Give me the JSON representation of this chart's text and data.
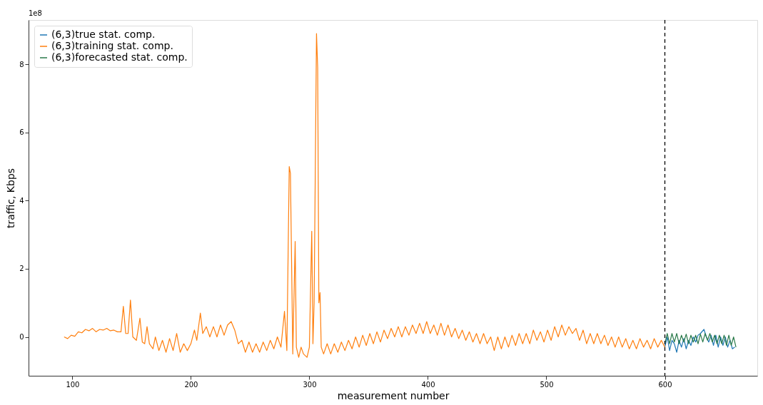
{
  "chart_data": {
    "type": "line",
    "xlabel": "measurement number",
    "ylabel": "traffic, Kbps",
    "annotations": [
      "1e8"
    ],
    "xlim": [
      63,
      678
    ],
    "ylim": [
      -1.14,
      9.3
    ],
    "xticks": [
      100,
      200,
      300,
      400,
      500,
      600
    ],
    "yticks": [
      0,
      2,
      4,
      6,
      8
    ],
    "grid": false,
    "legend": "top left",
    "line_style": "solid",
    "marker": "none",
    "ref_lines": [
      {
        "axis": "x",
        "value": 600,
        "label": null,
        "color": "#000000",
        "line_style": "dashed"
      }
    ],
    "series": [
      {
        "name": "(6,3)true stat. comp.",
        "color": "#1f77b4",
        "x": [
          600,
          602,
          604,
          606,
          608,
          610,
          612,
          614,
          616,
          618,
          620,
          622,
          624,
          626,
          628,
          630,
          633,
          635,
          637,
          639,
          641,
          643,
          645,
          647,
          649,
          651,
          653,
          655,
          657,
          659
        ],
        "values": [
          -0.3,
          0.0,
          -0.4,
          -0.1,
          -0.2,
          -0.45,
          -0.1,
          -0.3,
          -0.05,
          -0.35,
          -0.1,
          -0.25,
          0.0,
          -0.15,
          0.05,
          0.1,
          0.22,
          0.0,
          -0.15,
          0.05,
          -0.25,
          0.05,
          -0.3,
          0.0,
          -0.25,
          0.0,
          -0.3,
          -0.1,
          -0.35,
          -0.3
        ]
      },
      {
        "name": "(6,3)training stat. comp.",
        "color": "#ff7f0e",
        "x": [
          93,
          96,
          99,
          102,
          105,
          108,
          111,
          114,
          117,
          120,
          123,
          126,
          129,
          132,
          135,
          138,
          141,
          143,
          145,
          147,
          149,
          151,
          154,
          157,
          159,
          161,
          163,
          165,
          168,
          170,
          173,
          176,
          179,
          182,
          185,
          188,
          191,
          194,
          197,
          200,
          203,
          205,
          208,
          210,
          213,
          216,
          219,
          222,
          225,
          228,
          231,
          234,
          237,
          240,
          243,
          246,
          249,
          252,
          255,
          258,
          261,
          264,
          267,
          270,
          273,
          276,
          279,
          281,
          283,
          284,
          286,
          288,
          289,
          291,
          293,
          295,
          298,
          300,
          302,
          303,
          304,
          306,
          307,
          308,
          309,
          310,
          312,
          315,
          318,
          321,
          324,
          327,
          330,
          333,
          336,
          339,
          342,
          345,
          348,
          351,
          354,
          357,
          360,
          363,
          366,
          369,
          372,
          375,
          378,
          381,
          384,
          387,
          390,
          393,
          396,
          399,
          402,
          405,
          408,
          411,
          414,
          417,
          420,
          423,
          426,
          429,
          432,
          435,
          438,
          441,
          444,
          447,
          450,
          453,
          456,
          459,
          462,
          465,
          468,
          471,
          474,
          477,
          480,
          483,
          486,
          489,
          492,
          495,
          498,
          501,
          504,
          507,
          510,
          513,
          516,
          519,
          522,
          525,
          528,
          531,
          534,
          537,
          540,
          543,
          546,
          549,
          552,
          555,
          558,
          561,
          564,
          567,
          570,
          573,
          576,
          579,
          582,
          585,
          588,
          591,
          594,
          597,
          600
        ],
        "values": [
          0,
          -0.05,
          0.05,
          0.02,
          0.15,
          0.12,
          0.22,
          0.18,
          0.25,
          0.15,
          0.22,
          0.2,
          0.25,
          0.18,
          0.2,
          0.15,
          0.15,
          0.9,
          0.1,
          0.1,
          1.08,
          0.0,
          -0.1,
          0.55,
          -0.15,
          -0.2,
          0.3,
          -0.2,
          -0.35,
          0.0,
          -0.4,
          -0.1,
          -0.45,
          -0.05,
          -0.4,
          0.1,
          -0.45,
          -0.2,
          -0.4,
          -0.2,
          0.2,
          -0.1,
          0.7,
          0.1,
          0.3,
          0.0,
          0.3,
          0.0,
          0.35,
          0.05,
          0.35,
          0.45,
          0.2,
          -0.2,
          -0.1,
          -0.45,
          -0.15,
          -0.45,
          -0.2,
          -0.45,
          -0.15,
          -0.4,
          -0.1,
          -0.35,
          0.0,
          -0.3,
          0.75,
          -0.4,
          5.0,
          4.8,
          -0.5,
          2.8,
          -0.3,
          -0.6,
          -0.3,
          -0.5,
          -0.6,
          -0.3,
          3.1,
          -0.2,
          1.0,
          8.9,
          7.9,
          1.0,
          1.3,
          -0.3,
          -0.5,
          -0.2,
          -0.5,
          -0.2,
          -0.45,
          -0.15,
          -0.4,
          -0.1,
          -0.35,
          0.0,
          -0.3,
          0.05,
          -0.25,
          0.1,
          -0.2,
          0.15,
          -0.15,
          0.2,
          -0.05,
          0.25,
          0.0,
          0.3,
          0.0,
          0.3,
          0.05,
          0.35,
          0.1,
          0.4,
          0.1,
          0.45,
          0.1,
          0.35,
          0.05,
          0.4,
          0.05,
          0.35,
          0.0,
          0.25,
          -0.05,
          0.2,
          -0.1,
          0.15,
          -0.15,
          0.1,
          -0.2,
          0.1,
          -0.2,
          0.0,
          -0.4,
          0.0,
          -0.35,
          0.0,
          -0.3,
          0.05,
          -0.25,
          0.1,
          -0.2,
          0.1,
          -0.2,
          0.2,
          -0.1,
          0.15,
          -0.15,
          0.2,
          -0.1,
          0.3,
          0.0,
          0.35,
          0.05,
          0.3,
          0.1,
          0.25,
          -0.1,
          0.2,
          -0.2,
          0.1,
          -0.2,
          0.1,
          -0.2,
          0.05,
          -0.25,
          0.0,
          -0.3,
          0.0,
          -0.3,
          -0.05,
          -0.35,
          -0.1,
          -0.35,
          -0.05,
          -0.3,
          -0.1,
          -0.35,
          -0.05,
          -0.3,
          -0.1,
          -0.3
        ]
      },
      {
        "name": "(6,3)forecasted stat. comp.",
        "color": "#2a7a4a",
        "x": [
          600,
          602,
          604,
          606,
          608,
          610,
          612,
          614,
          616,
          618,
          620,
          622,
          624,
          626,
          628,
          630,
          632,
          634,
          636,
          638,
          640,
          642,
          644,
          646,
          648,
          650,
          652,
          654,
          656,
          658,
          660
        ],
        "values": [
          -0.2,
          0.1,
          -0.2,
          0.1,
          -0.15,
          0.1,
          -0.2,
          0.05,
          -0.15,
          0.08,
          -0.2,
          0.05,
          -0.15,
          0.05,
          -0.2,
          0.08,
          -0.15,
          0.1,
          -0.1,
          0.1,
          -0.15,
          0.05,
          -0.2,
          0.05,
          -0.2,
          0.05,
          -0.25,
          0.05,
          -0.25,
          0.0,
          -0.3
        ]
      }
    ]
  }
}
